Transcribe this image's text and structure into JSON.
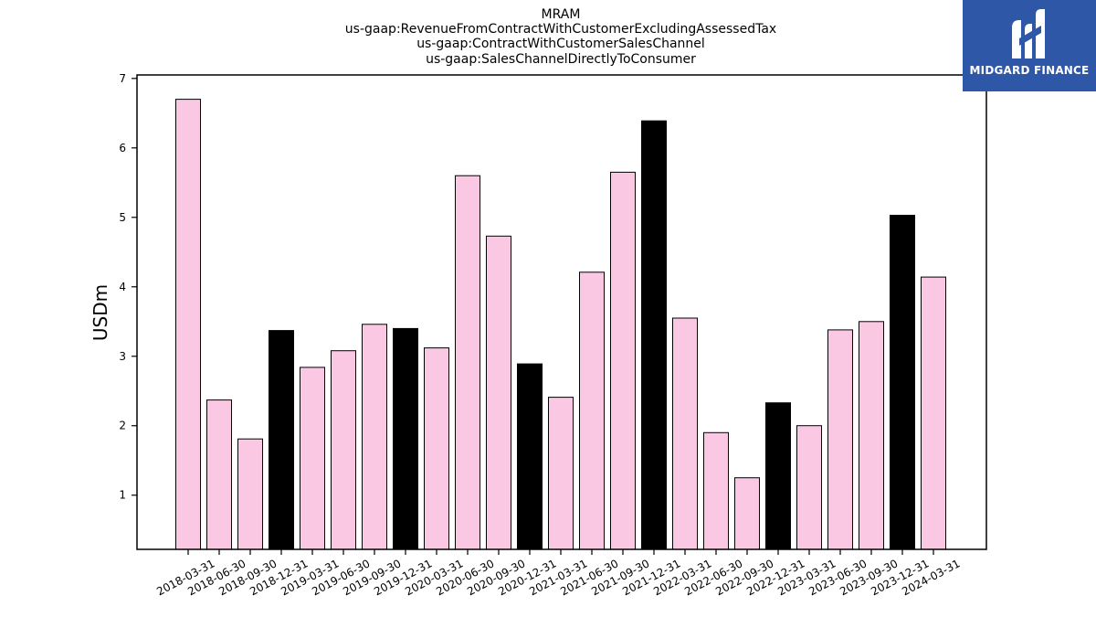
{
  "logo": {
    "text": "MIDGARD FINANCE",
    "bg_color": "#2f57a8"
  },
  "chart_data": {
    "type": "bar",
    "title_lines": [
      "MRAM",
      "us-gaap:RevenueFromContractWithCustomerExcludingAssessedTax",
      "us-gaap:ContractWithCustomerSalesChannel",
      "us-gaap:SalesChannelDirectlyToConsumer"
    ],
    "ylabel": "USDm",
    "xlabel": "",
    "ylim": [
      0.22,
      7.05
    ],
    "yticks": [
      1,
      2,
      3,
      4,
      5,
      6,
      7
    ],
    "categories": [
      "2018-03-31",
      "2018-06-30",
      "2018-09-30",
      "2018-12-31",
      "2019-03-31",
      "2019-06-30",
      "2019-09-30",
      "2019-12-31",
      "2020-03-31",
      "2020-06-30",
      "2020-09-30",
      "2020-12-31",
      "2021-03-31",
      "2021-06-30",
      "2021-09-30",
      "2021-12-31",
      "2022-03-31",
      "2022-06-30",
      "2022-09-30",
      "2022-12-31",
      "2023-03-31",
      "2023-06-30",
      "2023-09-30",
      "2023-12-31",
      "2024-03-31"
    ],
    "values": [
      6.7,
      2.37,
      1.81,
      3.37,
      2.84,
      3.08,
      3.46,
      3.4,
      3.12,
      5.6,
      4.73,
      2.89,
      2.41,
      4.21,
      5.65,
      6.39,
      3.55,
      1.9,
      1.25,
      2.33,
      2.0,
      3.38,
      3.5,
      5.03,
      4.14
    ],
    "highlight": [
      false,
      false,
      false,
      true,
      false,
      false,
      false,
      true,
      false,
      false,
      false,
      true,
      false,
      false,
      false,
      true,
      false,
      false,
      false,
      true,
      false,
      false,
      false,
      true,
      false
    ],
    "colors": {
      "bar": "#fbc8e3",
      "highlight": "#000000",
      "edge": "#000000"
    },
    "grid": false,
    "legend": "none"
  }
}
